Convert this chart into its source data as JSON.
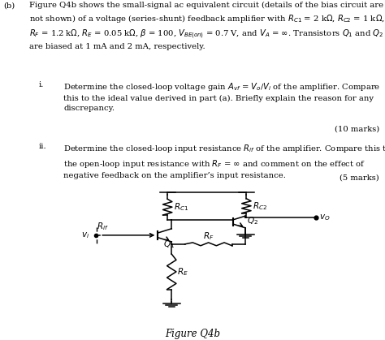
{
  "title": "Figure Q4b",
  "background_color": "#ffffff",
  "text_color": "#000000",
  "fig_width": 4.74,
  "fig_height": 4.19,
  "dpi": 100,
  "fs_main": 7.2,
  "fs_circ": 7.5,
  "para_text": "Figure Q4b shows the small-signal ac equivalent circuit (details of the bias circuit are\nnot shown) of a voltage (series-shunt) feedback amplifier with $R_{C1}$ = 2 k$\\Omega$, $R_{C2}$ = 1 k$\\Omega$,\n$R_F$ = 1.2 k$\\Omega$, $R_E$ = 0.05 k$\\Omega$, $\\beta$ = 100, $V_{BE(on)}$ = 0.7 V, and $V_A$ = $\\infty$. Transistors $Q_1$ and $Q_2$\nare biased at 1 mA and 2 mA, respectively.",
  "sub_i": "Determine the closed-loop voltage gain $A_{vf}$ = $V_o$/$V_i$ of the amplifier. Compare\nthis to the ideal value derived in part (a). Briefly explain the reason for any\ndiscrepancy.",
  "sub_i_marks": "(10 marks)",
  "sub_ii": "Determine the closed-loop input resistance $R_{if}$ of the amplifier. Compare this to\nthe open-loop input resistance with $R_F$ = $\\infty$ and comment on the effect of\nnegative feedback on the amplifier’s input resistance.",
  "sub_ii_marks": "(5 marks)",
  "fig_label": "Figure Q4b"
}
